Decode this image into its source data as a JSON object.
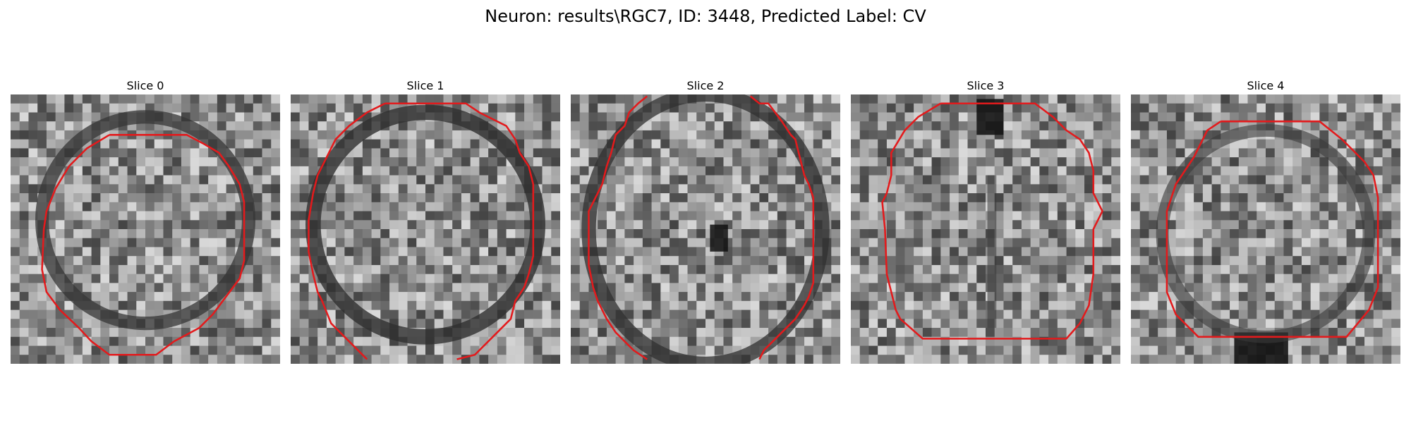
{
  "figure": {
    "title": "Neuron: results\\RGC7, ID: 3448, Predicted Label: CV"
  },
  "slices": [
    {
      "title": "Slice 0"
    },
    {
      "title": "Slice 1"
    },
    {
      "title": "Slice 2"
    },
    {
      "title": "Slice 3"
    },
    {
      "title": "Slice 4"
    }
  ],
  "colors": {
    "contour": "#e31a1c"
  }
}
